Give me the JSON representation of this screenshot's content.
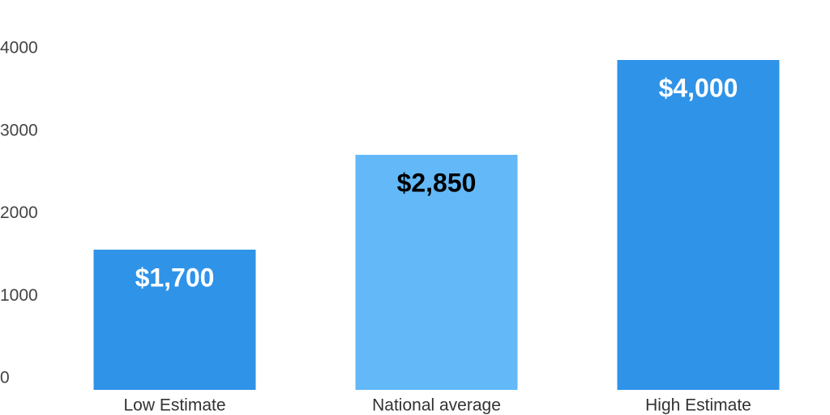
{
  "chart_data": {
    "type": "bar",
    "categories": [
      "Low Estimate",
      "National average",
      "High Estimate"
    ],
    "values": [
      1700,
      2850,
      4000
    ],
    "value_labels": [
      "$1,700",
      "$2,850",
      "$4,000"
    ],
    "colors": [
      "#2f93e8",
      "#63b9f8",
      "#2f93e8"
    ],
    "value_label_colors": [
      "#ffffff",
      "#000000",
      "#ffffff"
    ],
    "ylim": [
      0,
      4000
    ],
    "yticks": [
      0,
      1000,
      2000,
      3000,
      4000
    ],
    "grid": false
  }
}
